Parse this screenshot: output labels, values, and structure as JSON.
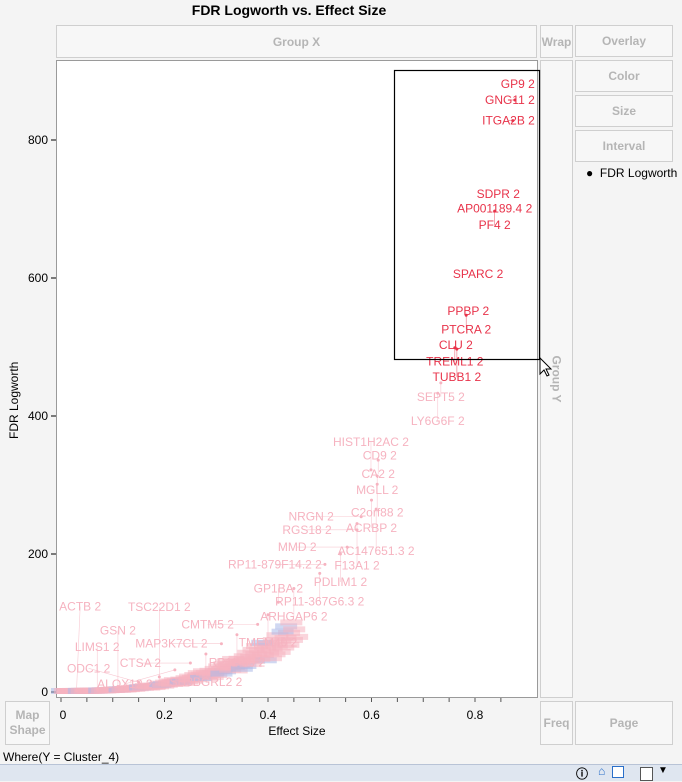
{
  "title": "FDR Logworth vs. Effect Size",
  "zones": {
    "group_x": "Group X",
    "wrap": "Wrap",
    "group_y": "Group Y",
    "map_shape_1": "Map",
    "map_shape_2": "Shape",
    "freq": "Freq",
    "page": "Page"
  },
  "side_buttons": [
    "Overlay",
    "Color",
    "Size",
    "Interval"
  ],
  "legend": {
    "label": "FDR Logworth"
  },
  "where": "Where(Y = Cluster_4)",
  "colors": {
    "highlight": "#e8334a",
    "normal": "#f6b3c0",
    "blue": "#a9b8e8"
  },
  "chart_data": {
    "type": "scatter",
    "xlabel": "Effect Size",
    "ylabel": "FDR Logworth",
    "xlim": [
      -0.01,
      0.92
    ],
    "ylim": [
      -10,
      925
    ],
    "xticks": [
      "0",
      "0.2",
      "0.4",
      "0.6",
      "0.8"
    ],
    "xtick_values": [
      0,
      0.2,
      0.4,
      0.6,
      0.8
    ],
    "yticks": [
      "0",
      "200",
      "400",
      "600",
      "800"
    ],
    "ytick_values": [
      0,
      200,
      400,
      600,
      800
    ],
    "labeled_points": [
      {
        "label": "GP9 2",
        "x": 0.887,
        "y": 881,
        "sel": true
      },
      {
        "label": "GNG11 2",
        "x": 0.877,
        "y": 858,
        "sel": true
      },
      {
        "label": "ITGA2B 2",
        "x": 0.873,
        "y": 828,
        "sel": true
      },
      {
        "label": "SDPR 2",
        "x": 0.845,
        "y": 722,
        "sel": true
      },
      {
        "label": "AP001189.4 2",
        "x": 0.838,
        "y": 701,
        "sel": true
      },
      {
        "label": "PF4 2",
        "x": 0.838,
        "y": 697,
        "sel": true
      },
      {
        "label": "SPARC 2",
        "x": 0.806,
        "y": 606,
        "sel": true
      },
      {
        "label": "PPBP 2",
        "x": 0.787,
        "y": 552,
        "sel": true
      },
      {
        "label": "PTCRA 2",
        "x": 0.783,
        "y": 546,
        "sel": true
      },
      {
        "label": "CLU 2",
        "x": 0.763,
        "y": 503,
        "sel": true
      },
      {
        "label": "TREML1 2",
        "x": 0.761,
        "y": 499,
        "sel": true
      },
      {
        "label": "TUBB1 2",
        "x": 0.765,
        "y": 497,
        "sel": true
      },
      {
        "label": "SEPT5 2",
        "x": 0.734,
        "y": 448,
        "sel": false
      },
      {
        "label": "LY6G6F 2",
        "x": 0.728,
        "y": 433,
        "sel": false
      },
      {
        "label": "CD9 2",
        "x": 0.616,
        "y": 343,
        "sel": false
      },
      {
        "label": "CA2 2",
        "x": 0.613,
        "y": 336,
        "sel": false
      },
      {
        "label": "HIST1H2AC 2",
        "x": 0.599,
        "y": 322,
        "sel": false
      },
      {
        "label": "MGLL 2",
        "x": 0.611,
        "y": 313,
        "sel": false
      },
      {
        "label": "C2orf88 2",
        "x": 0.611,
        "y": 301,
        "sel": false
      },
      {
        "label": "ACRBP 2",
        "x": 0.6,
        "y": 278,
        "sel": false
      },
      {
        "label": "AC147651.3 2",
        "x": 0.609,
        "y": 265,
        "sel": false
      },
      {
        "label": "NRGN 2",
        "x": 0.58,
        "y": 254,
        "sel": false
      },
      {
        "label": "F13A1 2",
        "x": 0.572,
        "y": 244,
        "sel": false
      },
      {
        "label": "RGS18 2",
        "x": 0.572,
        "y": 235,
        "sel": false
      },
      {
        "label": "MMD 2",
        "x": 0.553,
        "y": 210,
        "sel": false
      },
      {
        "label": "PDLIM1 2",
        "x": 0.54,
        "y": 200,
        "sel": false
      },
      {
        "label": "RP11-879F14.2 2",
        "x": 0.51,
        "y": 185,
        "sel": false
      },
      {
        "label": "RP11-367G6.3 2",
        "x": 0.5,
        "y": 172,
        "sel": false
      },
      {
        "label": "ARHGAP6 2",
        "x": 0.45,
        "y": 150,
        "sel": false
      },
      {
        "label": "GP1BA 2",
        "x": 0.42,
        "y": 130,
        "sel": false
      },
      {
        "label": "TMEM40 2",
        "x": 0.4,
        "y": 112,
        "sel": false
      },
      {
        "label": "CMTM5 2",
        "x": 0.38,
        "y": 98,
        "sel": false
      },
      {
        "label": "RP11-80 2",
        "x": 0.34,
        "y": 83,
        "sel": false
      },
      {
        "label": "MAP3K7CL 2",
        "x": 0.31,
        "y": 70,
        "sel": false
      },
      {
        "label": "SH3BGRL2 2",
        "x": 0.28,
        "y": 55,
        "sel": false
      },
      {
        "label": "CTSA 2",
        "x": 0.25,
        "y": 42,
        "sel": false
      },
      {
        "label": "ALOX12 2",
        "x": 0.22,
        "y": 32,
        "sel": false
      },
      {
        "label": "TSC22D1 2",
        "x": 0.19,
        "y": 22,
        "sel": false
      },
      {
        "label": "ODC1 2",
        "x": 0.15,
        "y": 14,
        "sel": false
      },
      {
        "label": "GSN 2",
        "x": 0.11,
        "y": 8,
        "sel": false
      },
      {
        "label": "LIMS1 2",
        "x": 0.07,
        "y": 4,
        "sel": false
      },
      {
        "label": "ACTB 2",
        "x": 0.03,
        "y": 2,
        "sel": false
      }
    ]
  }
}
